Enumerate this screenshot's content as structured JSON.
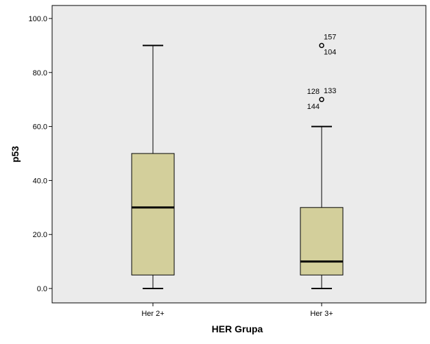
{
  "chart_data": {
    "type": "boxplot",
    "xlabel": "HER Grupa",
    "ylabel": "p53",
    "ylim": [
      0,
      100
    ],
    "yticks": [
      0,
      20,
      40,
      60,
      80,
      100
    ],
    "ytick_labels": [
      "0.0",
      "20.0",
      "40.0",
      "60.0",
      "80.0",
      "100.0"
    ],
    "grid": false,
    "colors": {
      "box_fill": "#d3cf9b",
      "plot_bg": "#ebebeb",
      "stroke": "#000000"
    },
    "categories": [
      "Her 2+",
      "Her 3+"
    ],
    "boxes": [
      {
        "category": "Her 2+",
        "min": 0,
        "q1": 5,
        "median": 30,
        "q3": 50,
        "max": 90,
        "outliers": []
      },
      {
        "category": "Her 3+",
        "min": 0,
        "q1": 5,
        "median": 10,
        "q3": 30,
        "max": 60,
        "outliers": [
          {
            "value": 90,
            "labels": [
              "157",
              "104"
            ]
          },
          {
            "value": 70,
            "labels": [
              "128",
              "133",
              "144"
            ]
          }
        ]
      }
    ]
  }
}
